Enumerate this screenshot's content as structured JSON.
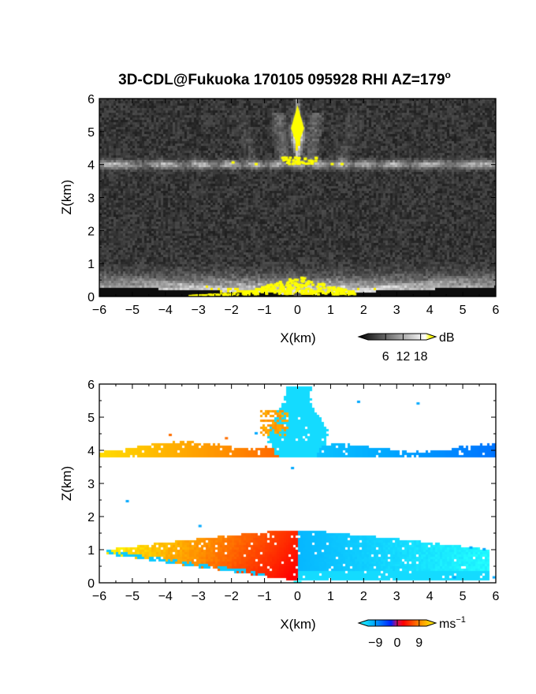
{
  "title": "3D-CDL@Fukuoka 170105 095928 RHI AZ=179",
  "title_superscript": "o",
  "chart_data": [
    {
      "type": "heatmap",
      "name": "reflectivity",
      "xlabel": "X(km)",
      "ylabel": "Z(km)",
      "xlim": [
        -6,
        6
      ],
      "ylim": [
        0,
        6
      ],
      "xticks": [
        "-6",
        "-5",
        "-4",
        "-3",
        "-2",
        "-1",
        "0",
        "1",
        "2",
        "3",
        "4",
        "5",
        "6"
      ],
      "yticks": [
        "0",
        "1",
        "2",
        "3",
        "4",
        "5",
        "6"
      ],
      "colorbar": {
        "unit": "dB",
        "ticks": [
          "6",
          "12",
          "18"
        ],
        "tick_values": [
          6,
          12,
          18
        ],
        "range": [
          0,
          20
        ],
        "colors": [
          "#000000",
          "#ffffff",
          "#ffff00"
        ]
      },
      "features": [
        {
          "layer": "melting band",
          "z_km": [
            3.85,
            4.15
          ],
          "x_km": [
            -6,
            6
          ]
        },
        {
          "layer": "low echo fan",
          "z_km": [
            0,
            1.4
          ],
          "x_km": [
            -6,
            6
          ]
        },
        {
          "layer": "zenith bright core",
          "z_km": [
            4.3,
            5.6
          ],
          "x_km": [
            -0.3,
            0.3
          ]
        }
      ]
    },
    {
      "type": "heatmap",
      "name": "doppler velocity",
      "xlabel": "X(km)",
      "ylabel": "Z(km)",
      "xlim": [
        -6,
        6
      ],
      "ylim": [
        0,
        6
      ],
      "xticks": [
        "-6",
        "-5",
        "-4",
        "-3",
        "-2",
        "-1",
        "0",
        "1",
        "2",
        "3",
        "4",
        "5",
        "6"
      ],
      "yticks": [
        "0",
        "1",
        "2",
        "3",
        "4",
        "5",
        "6"
      ],
      "colorbar": {
        "unit": "ms",
        "unit_superscript": "−1",
        "ticks": [
          "−9",
          "0",
          "9"
        ],
        "tick_values": [
          -9,
          0,
          9
        ],
        "range": [
          -12,
          12
        ],
        "colors": [
          "#22ffff",
          "#0033ff",
          "#ff0000",
          "#ffee00"
        ]
      },
      "features": [
        {
          "layer": "upper band",
          "z_km": [
            3.75,
            4.15
          ],
          "v_left": 8,
          "v_right": -8
        },
        {
          "layer": "lower fan",
          "z_km": [
            0,
            1.65
          ],
          "v_left": 9,
          "v_right": -9
        },
        {
          "layer": "zenith column",
          "z_km": [
            3.8,
            5.9
          ],
          "v": -9
        }
      ]
    }
  ]
}
